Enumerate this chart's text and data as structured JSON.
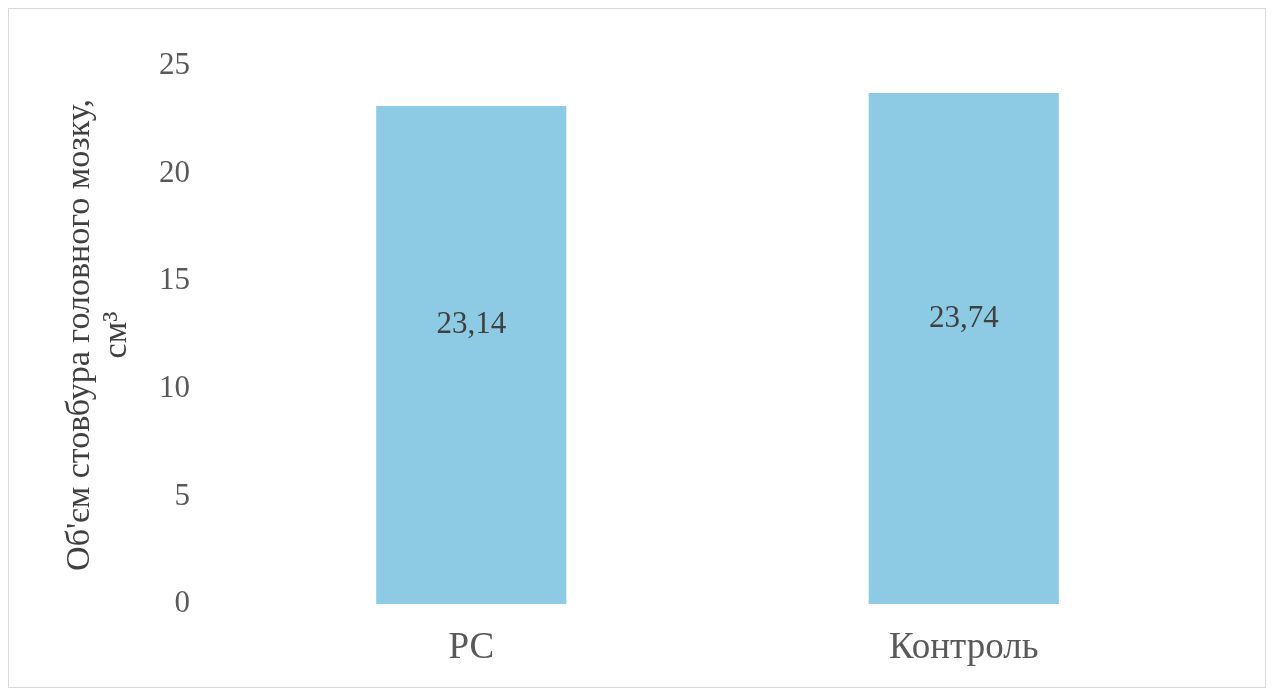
{
  "chart_data": {
    "type": "bar",
    "ylabel": "Об'єм стовбура головного мозку, см³",
    "categories": [
      "РС",
      "Контроль"
    ],
    "values": [
      23.14,
      23.74
    ],
    "value_labels": [
      "23,14",
      "23,74"
    ],
    "color": "#8ccbe3",
    "ylim": [
      0,
      25
    ],
    "yticks": [
      0,
      5,
      10,
      15,
      20,
      25
    ]
  }
}
